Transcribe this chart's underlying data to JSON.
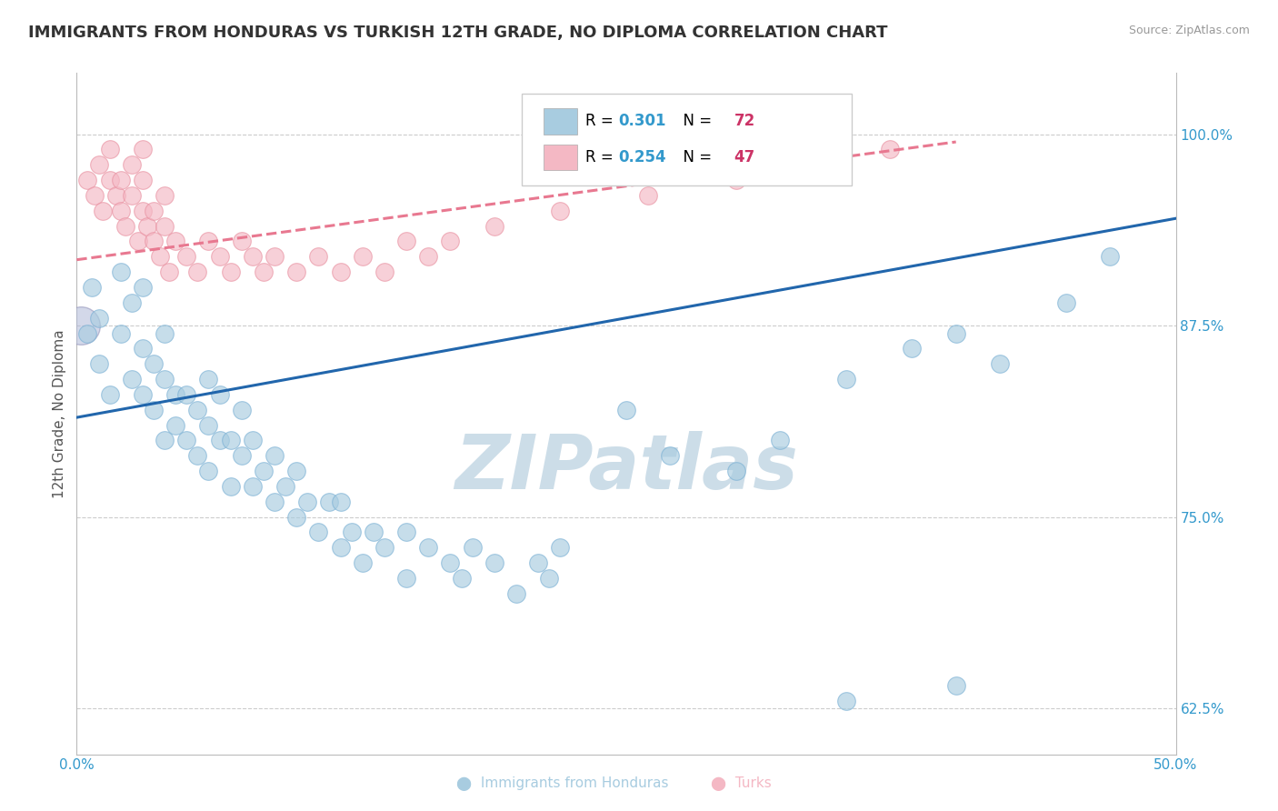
{
  "title": "IMMIGRANTS FROM HONDURAS VS TURKISH 12TH GRADE, NO DIPLOMA CORRELATION CHART",
  "source": "Source: ZipAtlas.com",
  "xlabel_honduras": "Immigrants from Honduras",
  "xlabel_turks": "Turks",
  "ylabel": "12th Grade, No Diploma",
  "xlim": [
    0.0,
    0.5
  ],
  "ylim": [
    0.595,
    1.04
  ],
  "xtick_values": [
    0.0,
    0.5
  ],
  "xtick_labels": [
    "0.0%",
    "50.0%"
  ],
  "ytick_values": [
    0.625,
    0.75,
    0.875,
    1.0
  ],
  "ytick_labels": [
    "62.5%",
    "75.0%",
    "87.5%",
    "100.0%"
  ],
  "honduras_R": 0.301,
  "honduras_N": 72,
  "turks_R": 0.254,
  "turks_N": 47,
  "blue_fill": "#a8cce0",
  "blue_edge": "#7ab0d4",
  "blue_line": "#2166ac",
  "pink_fill": "#f4b8c4",
  "pink_edge": "#e890a0",
  "pink_line": "#e87890",
  "legend_blue_fill": "#a8cce0",
  "legend_pink_fill": "#f4b8c4",
  "watermark_text": "ZIPatlas",
  "watermark_color": "#ccdde8",
  "axis_tick_color": "#3399cc",
  "ylabel_color": "#555555",
  "title_color": "#333333",
  "source_color": "#999999",
  "R_color": "#3399cc",
  "N_color": "#cc3366",
  "grid_color": "#cccccc",
  "blue_x": [
    0.005,
    0.007,
    0.01,
    0.01,
    0.015,
    0.02,
    0.02,
    0.025,
    0.025,
    0.03,
    0.03,
    0.03,
    0.035,
    0.035,
    0.04,
    0.04,
    0.04,
    0.045,
    0.045,
    0.05,
    0.05,
    0.055,
    0.055,
    0.06,
    0.06,
    0.06,
    0.065,
    0.065,
    0.07,
    0.07,
    0.075,
    0.075,
    0.08,
    0.08,
    0.085,
    0.09,
    0.09,
    0.095,
    0.1,
    0.1,
    0.105,
    0.11,
    0.115,
    0.12,
    0.12,
    0.125,
    0.13,
    0.135,
    0.14,
    0.15,
    0.15,
    0.16,
    0.17,
    0.175,
    0.18,
    0.19,
    0.2,
    0.21,
    0.215,
    0.22,
    0.25,
    0.27,
    0.3,
    0.32,
    0.35,
    0.38,
    0.4,
    0.42,
    0.45,
    0.47,
    0.35,
    0.4
  ],
  "blue_y": [
    0.87,
    0.9,
    0.85,
    0.88,
    0.83,
    0.87,
    0.91,
    0.84,
    0.89,
    0.83,
    0.86,
    0.9,
    0.82,
    0.85,
    0.8,
    0.84,
    0.87,
    0.81,
    0.83,
    0.8,
    0.83,
    0.79,
    0.82,
    0.78,
    0.81,
    0.84,
    0.8,
    0.83,
    0.77,
    0.8,
    0.79,
    0.82,
    0.77,
    0.8,
    0.78,
    0.76,
    0.79,
    0.77,
    0.75,
    0.78,
    0.76,
    0.74,
    0.76,
    0.73,
    0.76,
    0.74,
    0.72,
    0.74,
    0.73,
    0.71,
    0.74,
    0.73,
    0.72,
    0.71,
    0.73,
    0.72,
    0.7,
    0.72,
    0.71,
    0.73,
    0.82,
    0.79,
    0.78,
    0.8,
    0.84,
    0.86,
    0.87,
    0.85,
    0.89,
    0.92,
    0.63,
    0.64
  ],
  "pink_x": [
    0.005,
    0.008,
    0.01,
    0.012,
    0.015,
    0.015,
    0.018,
    0.02,
    0.02,
    0.022,
    0.025,
    0.025,
    0.028,
    0.03,
    0.03,
    0.03,
    0.032,
    0.035,
    0.035,
    0.038,
    0.04,
    0.04,
    0.042,
    0.045,
    0.05,
    0.055,
    0.06,
    0.065,
    0.07,
    0.075,
    0.08,
    0.085,
    0.09,
    0.1,
    0.11,
    0.12,
    0.13,
    0.14,
    0.15,
    0.16,
    0.17,
    0.19,
    0.22,
    0.26,
    0.3,
    0.33,
    0.37
  ],
  "pink_y": [
    0.97,
    0.96,
    0.98,
    0.95,
    0.97,
    0.99,
    0.96,
    0.95,
    0.97,
    0.94,
    0.96,
    0.98,
    0.93,
    0.95,
    0.97,
    0.99,
    0.94,
    0.93,
    0.95,
    0.92,
    0.94,
    0.96,
    0.91,
    0.93,
    0.92,
    0.91,
    0.93,
    0.92,
    0.91,
    0.93,
    0.92,
    0.91,
    0.92,
    0.91,
    0.92,
    0.91,
    0.92,
    0.91,
    0.93,
    0.92,
    0.93,
    0.94,
    0.95,
    0.96,
    0.97,
    0.98,
    0.99
  ],
  "blue_line_x": [
    0.0,
    0.5
  ],
  "blue_line_y": [
    0.815,
    0.945
  ],
  "pink_line_x": [
    0.0,
    0.4
  ],
  "pink_line_y": [
    0.918,
    0.995
  ]
}
